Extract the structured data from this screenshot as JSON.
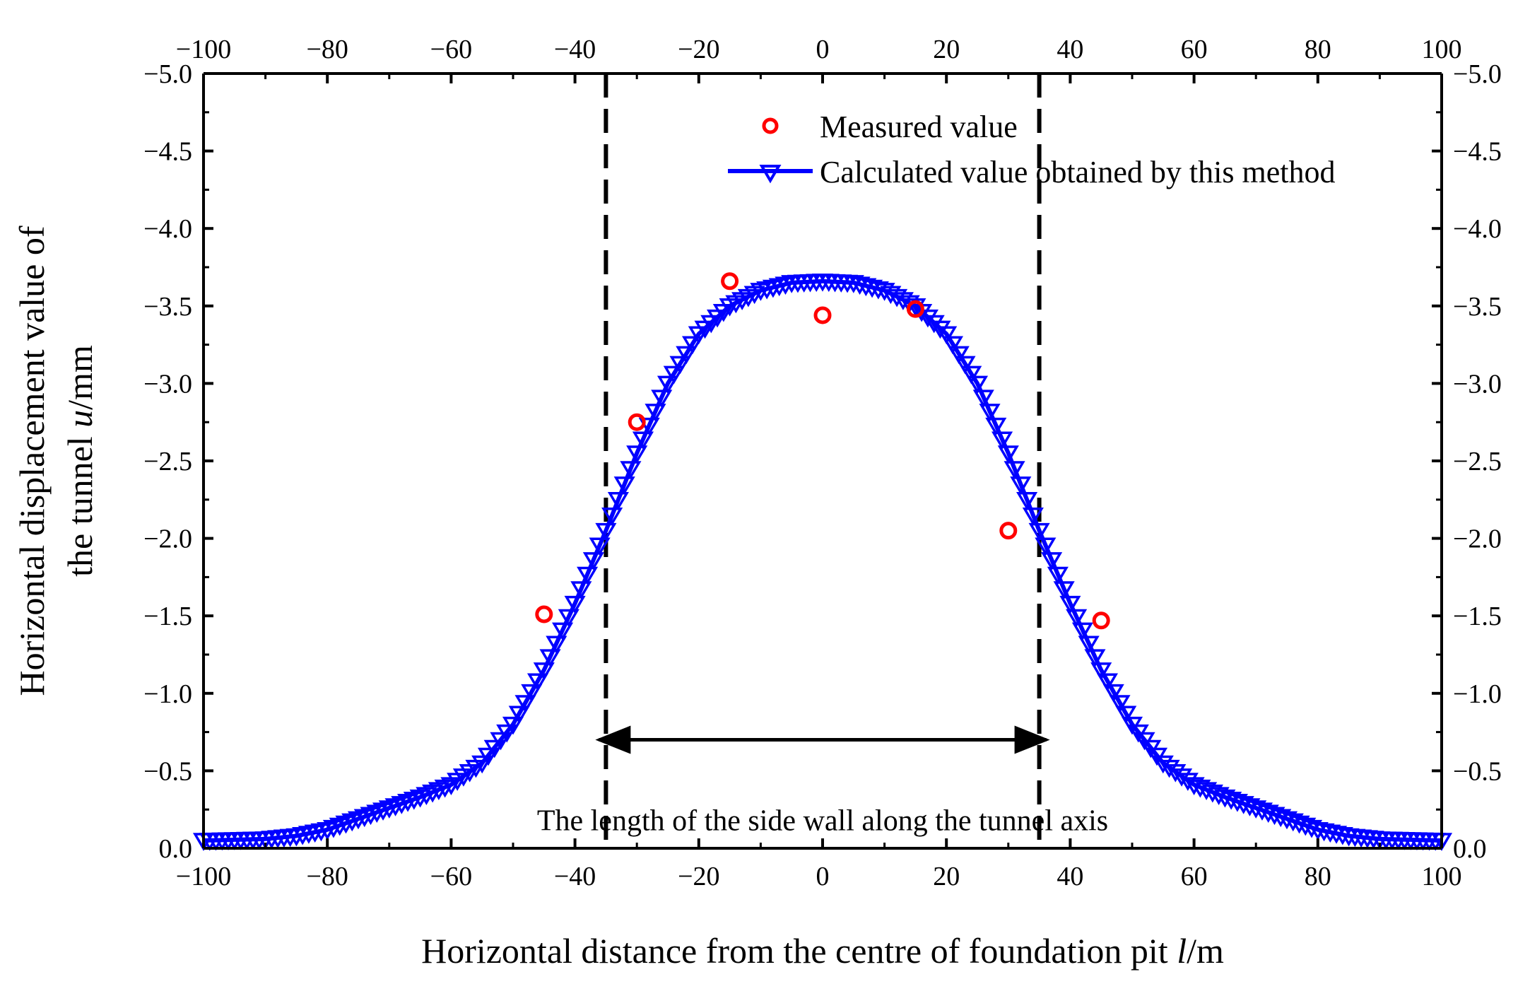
{
  "chart_data": {
    "type": "scatter",
    "xlabel_prefix": "Horizontal distance from the centre of foundation pit ",
    "xlabel_var": "l",
    "xlabel_unit": "/m",
    "ylabel_line1": "Horizontal displacement value of",
    "ylabel_line2_prefix": "the tunnel ",
    "ylabel_var": "u",
    "ylabel_unit": "/mm",
    "xlim": [
      -100,
      100
    ],
    "ylim": [
      0,
      -5
    ],
    "x_ticks": [
      -100,
      -80,
      -60,
      -40,
      -20,
      0,
      20,
      40,
      60,
      80,
      100
    ],
    "x_tick_labels": [
      "−100",
      "−80",
      "−60",
      "−40",
      "−20",
      "0",
      "20",
      "40",
      "60",
      "80",
      "100"
    ],
    "y_ticks": [
      0,
      -0.5,
      -1,
      -1.5,
      -2,
      -2.5,
      -3,
      -3.5,
      -4,
      -4.5,
      -5
    ],
    "y_tick_labels": [
      "0.0",
      "−0.5",
      "−1.0",
      "−1.5",
      "−2.0",
      "−2.5",
      "−3.0",
      "−3.5",
      "−4.0",
      "−4.5",
      "−5.0"
    ],
    "series": [
      {
        "name": "Measured value",
        "marker": "circle",
        "color": "#ff0000",
        "x": [
          -45,
          -30,
          -15,
          0,
          15,
          30,
          45
        ],
        "y": [
          -1.51,
          -2.75,
          -3.66,
          -3.44,
          -3.48,
          -2.05,
          -1.47
        ]
      },
      {
        "name": "Calculated value obtained by this method",
        "marker": "triangle-down",
        "line": true,
        "color": "#0000ff",
        "x_start": -100,
        "x_end": 100,
        "x_step": 1,
        "curve_x": [
          -100,
          -90,
          -85,
          -80,
          -75,
          -70,
          -65,
          -60,
          -55,
          -50,
          -45,
          -40,
          -35,
          -30,
          -25,
          -20,
          -15,
          -10,
          -5,
          0,
          5,
          10,
          15,
          20,
          25,
          30,
          35,
          40,
          45,
          50,
          55,
          60,
          65,
          70,
          75,
          80,
          85,
          90,
          100
        ],
        "curve_y": [
          -0.05,
          -0.06,
          -0.08,
          -0.12,
          -0.19,
          -0.26,
          -0.33,
          -0.41,
          -0.55,
          -0.8,
          -1.15,
          -1.58,
          -2.05,
          -2.55,
          -3.0,
          -3.32,
          -3.5,
          -3.6,
          -3.65,
          -3.66,
          -3.65,
          -3.6,
          -3.5,
          -3.32,
          -3.0,
          -2.55,
          -2.05,
          -1.58,
          -1.15,
          -0.8,
          -0.55,
          -0.41,
          -0.33,
          -0.26,
          -0.19,
          -0.12,
          -0.08,
          -0.06,
          -0.05
        ]
      }
    ],
    "reference_lines_x": [
      -35,
      35
    ],
    "span_arrow": {
      "x1": -35,
      "x2": 35,
      "y": -0.7
    },
    "annotation": {
      "text": "The length of the side wall along the tunnel axis",
      "x": 0,
      "y": -0.18
    },
    "legend_position": "top-right"
  }
}
